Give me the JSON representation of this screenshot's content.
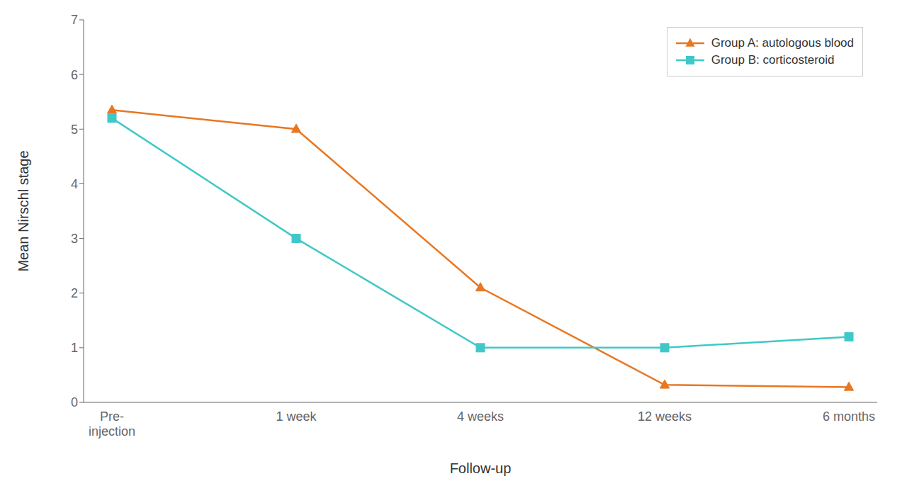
{
  "chart_data": {
    "type": "line",
    "categories": [
      "Pre-\ninjection",
      "1 week",
      "4 weeks",
      "12 weeks",
      "6 months"
    ],
    "series": [
      {
        "name": "Group A: autologous blood",
        "color": "#E87722",
        "marker": "triangle",
        "values": [
          5.35,
          5.0,
          2.1,
          0.32,
          0.28
        ]
      },
      {
        "name": "Group B: corticosteroid",
        "color": "#40C8C8",
        "marker": "square",
        "values": [
          5.2,
          3.0,
          1.0,
          1.0,
          1.2
        ]
      }
    ],
    "xlabel": "Follow-up",
    "ylabel": "Mean Nirschl stage",
    "ylim": [
      0,
      7
    ],
    "yticks": [
      0,
      1,
      2,
      3,
      4,
      5,
      6,
      7
    ],
    "grid": false,
    "legend": "upper right"
  }
}
